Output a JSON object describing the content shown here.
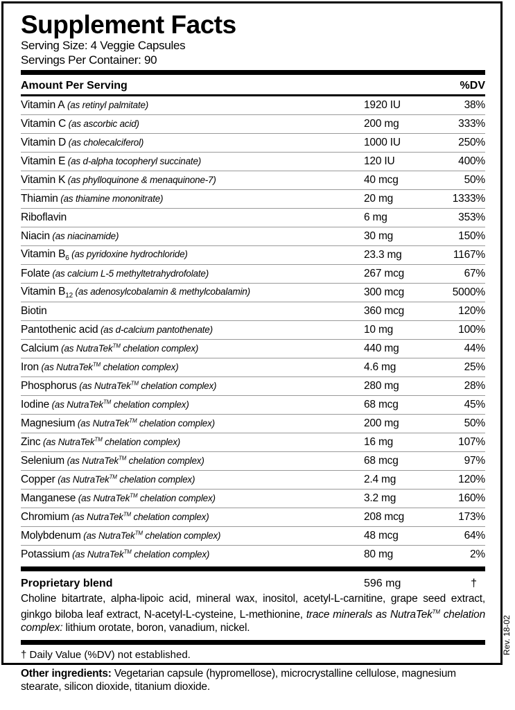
{
  "title": "Supplement Facts",
  "serving_size": "Serving Size: 4 Veggie Capsules",
  "servings_per_container": "Servings Per Container: 90",
  "header": {
    "amount": "Amount Per Serving",
    "dv": "%DV"
  },
  "rows": [
    {
      "name": "Vitamin A",
      "detail": " (as retinyl palmitate)",
      "amount": "1920 IU",
      "dv": "38%"
    },
    {
      "name": "Vitamin C",
      "detail": " (as ascorbic acid)",
      "amount": "200 mg",
      "dv": "333%"
    },
    {
      "name": "Vitamin D",
      "detail": " (as cholecalciferol)",
      "amount": "1000 IU",
      "dv": "250%"
    },
    {
      "name": "Vitamin E",
      "detail": " (as d-alpha tocopheryl succinate)",
      "amount": "120 IU",
      "dv": "400%"
    },
    {
      "name": "Vitamin K",
      "detail": " (as phylloquinone & menaquinone-7)",
      "amount": "40 mcg",
      "dv": "50%"
    },
    {
      "name": "Thiamin",
      "detail": " (as thiamine mononitrate)",
      "amount": "20 mg",
      "dv": "1333%"
    },
    {
      "name": "Riboflavin",
      "amount": "6 mg",
      "dv": "353%"
    },
    {
      "name": "Niacin",
      "detail": " (as niacinamide)",
      "amount": "30 mg",
      "dv": "150%"
    },
    {
      "name": "Vitamin B",
      "name_sub": "6",
      "detail": " (as pyridoxine hydrochloride)",
      "amount": "23.3 mg",
      "dv": "1167%"
    },
    {
      "name": "Folate",
      "detail": " (as calcium L-5 methyltetrahydrofolate)",
      "amount": "267 mcg",
      "dv": "67%"
    },
    {
      "name": "Vitamin B",
      "name_sub": "12",
      "detail": " (as adenosylcobalamin & methylcobalamin)",
      "amount": "300 mcg",
      "dv": "5000%"
    },
    {
      "name": "Biotin",
      "amount": "360 mcg",
      "dv": "120%"
    },
    {
      "name": "Pantothenic acid",
      "detail": " (as d-calcium pantothenate)",
      "amount": "10 mg",
      "dv": "100%"
    },
    {
      "name": "Calcium",
      "detail": " (as NutraTek",
      "sup": "TM",
      "detail_post": " chelation complex)",
      "amount": "440 mg",
      "dv": "44%"
    },
    {
      "name": "Iron",
      "detail": " (as NutraTek",
      "sup": "TM",
      "detail_post": " chelation complex)",
      "amount": "4.6 mg",
      "dv": "25%"
    },
    {
      "name": "Phosphorus",
      "detail": " (as NutraTek",
      "sup": "TM",
      "detail_post": " chelation complex)",
      "amount": "280 mg",
      "dv": "28%"
    },
    {
      "name": "Iodine",
      "detail": " (as NutraTek",
      "sup": "TM",
      "detail_post": " chelation complex)",
      "amount": "68 mcg",
      "dv": "45%"
    },
    {
      "name": "Magnesium",
      "detail": " (as NutraTek",
      "sup": "TM",
      "detail_post": " chelation complex)",
      "amount": "200 mg",
      "dv": "50%"
    },
    {
      "name": "Zinc",
      "detail": " (as NutraTek",
      "sup": "TM",
      "detail_post": " chelation complex)",
      "amount": "16 mg",
      "dv": "107%"
    },
    {
      "name": "Selenium",
      "detail": " (as NutraTek",
      "sup": "TM",
      "detail_post": " chelation complex)",
      "amount": "68 mcg",
      "dv": "97%"
    },
    {
      "name": "Copper",
      "detail": " (as NutraTek",
      "sup": "TM",
      "detail_post": " chelation complex)",
      "amount": "2.4 mg",
      "dv": "120%"
    },
    {
      "name": "Manganese",
      "detail": " (as NutraTek",
      "sup": "TM",
      "detail_post": " chelation complex)",
      "amount": "3.2 mg",
      "dv": "160%"
    },
    {
      "name": "Chromium",
      "detail": " (as NutraTek",
      "sup": "TM",
      "detail_post": " chelation complex)",
      "amount": "208 mcg",
      "dv": "173%"
    },
    {
      "name": "Molybdenum",
      "detail": " (as NutraTek",
      "sup": "TM",
      "detail_post": " chelation complex)",
      "amount": "48 mcg",
      "dv": "64%"
    },
    {
      "name": "Potassium",
      "detail": " (as NutraTek",
      "sup": "TM",
      "detail_post": " chelation complex)",
      "amount": "80 mg",
      "dv": "2%"
    }
  ],
  "blend": {
    "name": "Proprietary blend",
    "amount": "596 mg",
    "dv": "†",
    "text": "Choline bitartrate, alpha-lipoic acid, mineral wax, inositol, acetyl-L-carnitine, grape seed extract, ginkgo biloba leaf extract, N-acetyl-L-cysteine, L-methionine, ",
    "italic_pre": "trace minerals as NutraTek",
    "italic_sup": "TM",
    "italic_post": " chelation complex:",
    "text_post": " lithium orotate, boron, vanadium, nickel."
  },
  "footnote": "† Daily Value (%DV) not established.",
  "other": {
    "label": "Other ingredients:",
    "text": " Vegetarian capsule (hypromellose), microcrystalline cellulose, magnesium stearate, silicon dioxide, titanium dioxide."
  },
  "revision": "Rev. 18-02"
}
